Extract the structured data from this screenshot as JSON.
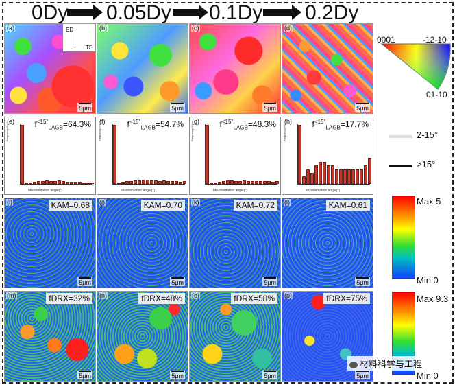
{
  "header": {
    "stages": [
      "0Dy",
      "0.05Dy",
      "0.1Dy",
      "0.2Dy"
    ]
  },
  "orientation_key": {
    "top_left": "0001",
    "top_right": "-12-10",
    "bottom": "01-10",
    "axis_ed": "ED",
    "axis_td": "TD"
  },
  "boundary_legend": {
    "lagb": "2-15°",
    "hagb": ">15°"
  },
  "kam_colorbar": {
    "max": "Max 5",
    "min": "Min 0"
  },
  "drx_colorbar": {
    "max": "Max 9.3",
    "min": "Min 0"
  },
  "scale": "5μm",
  "row_ipf": [
    {
      "label": "(a)"
    },
    {
      "label": "(b)"
    },
    {
      "label": "(c)"
    },
    {
      "label": "(d)"
    }
  ],
  "row_hist": [
    {
      "label": "(e)",
      "prefix": "f",
      "sup": "<15°",
      "sub": "LAGB",
      "value": "=64.3%",
      "bars": [
        90,
        2,
        2,
        3,
        4,
        4,
        5,
        4,
        4,
        5,
        4,
        3,
        3,
        3,
        3,
        2,
        2,
        2
      ]
    },
    {
      "label": "(f)",
      "prefix": "f",
      "sup": "<15°",
      "sub": "LAGB",
      "value": "=54.7%",
      "bars": [
        85,
        2,
        3,
        4,
        4,
        5,
        5,
        6,
        6,
        5,
        5,
        4,
        5,
        4,
        4,
        4,
        3,
        4
      ]
    },
    {
      "label": "(g)",
      "prefix": "f",
      "sup": "<15°",
      "sub": "LAGB",
      "value": "=48.3%",
      "bars": [
        80,
        2,
        2,
        3,
        4,
        5,
        5,
        4,
        4,
        5,
        4,
        4,
        4,
        4,
        4,
        4,
        3,
        4
      ]
    },
    {
      "label": "(h)",
      "prefix": "f",
      "sup": "<15°",
      "sub": "LAGB",
      "value": "=17.7%",
      "bars": [
        16,
        2,
        4,
        3,
        5,
        6,
        6,
        5,
        5,
        4,
        4,
        4,
        4,
        4,
        4,
        4,
        5,
        7
      ]
    }
  ],
  "hist_axes": {
    "ylabel": "Frequency(%)",
    "xlabel": "Misorientation angle(°)"
  },
  "row_kam": [
    {
      "label": "(i)",
      "text": "KAM=0.68"
    },
    {
      "label": "(j)",
      "text": "KAM=0.70"
    },
    {
      "label": "(k)",
      "text": "KAM=0.72"
    },
    {
      "label": "(l)",
      "text": "KAM=0.61"
    }
  ],
  "row_drx": [
    {
      "label": "(m)",
      "text": "fDRX=32%"
    },
    {
      "label": "(n)",
      "text": "fDRX=48%"
    },
    {
      "label": "(o)",
      "text": "fDRX=58%"
    },
    {
      "label": "(p)",
      "text": "fDRX=75%"
    }
  ],
  "watermark": "材料科学与工程",
  "colors": {
    "bar": "#c0392b",
    "frame": "#222"
  }
}
